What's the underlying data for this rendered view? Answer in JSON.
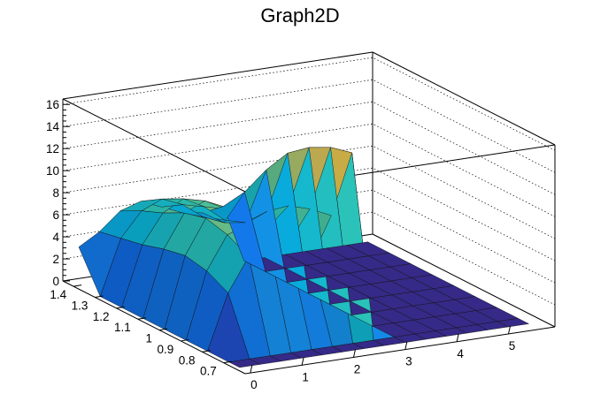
{
  "chart_data": {
    "type": "surface",
    "title": "Graph2D",
    "xlim": [
      -0.1,
      5.9
    ],
    "ylim": [
      0.6,
      1.45
    ],
    "zlim": [
      0,
      16.5
    ],
    "x_ticks": [
      "0",
      "1",
      "2",
      "3",
      "4",
      "5"
    ],
    "y_ticks": [
      "0.7",
      "0.8",
      "0.9",
      "1",
      "1.1",
      "1.2",
      "1.3",
      "1.4"
    ],
    "z_ticks": [
      "0",
      "2",
      "4",
      "6",
      "8",
      "10",
      "12",
      "14",
      "16"
    ],
    "grid": true,
    "palette": [
      "#352a87",
      "#0f5cdd",
      "#1481d6",
      "#06a4ca",
      "#2eb7a4",
      "#87bf77",
      "#d1bb59",
      "#fec832",
      "#f9fb0e"
    ],
    "z_grid_x": [
      0,
      0.4,
      0.8,
      1.2,
      1.6,
      2.0,
      2.4,
      2.8,
      3.2,
      3.6,
      4.0,
      4.4,
      4.8,
      5.2,
      5.6
    ],
    "z_grid_y": [
      1.4,
      1.3,
      1.2,
      1.1,
      1.0,
      0.9,
      0.8,
      0.7,
      0.65
    ],
    "z_values": [
      [
        3.5,
        4.6,
        6.2,
        6.8,
        6.0,
        5.2,
        4.9,
        5.2,
        0,
        0,
        0,
        0,
        0,
        0,
        0
      ],
      [
        0,
        5.0,
        7.2,
        8.0,
        7.2,
        5.8,
        5.0,
        7.5,
        0,
        0,
        0,
        0,
        0,
        0,
        0
      ],
      [
        0,
        5.4,
        8.0,
        9.0,
        8.0,
        6.5,
        6.0,
        10.5,
        0,
        0,
        0,
        0,
        0,
        0,
        0
      ],
      [
        0,
        6.0,
        9.0,
        9.8,
        8.8,
        7.2,
        8.0,
        13.0,
        0,
        0,
        0,
        0,
        0,
        0,
        0
      ],
      [
        0,
        6.4,
        9.5,
        10.2,
        9.4,
        7.8,
        9.5,
        14.5,
        0,
        0,
        0,
        0,
        0,
        0,
        0
      ],
      [
        0,
        6.0,
        9.0,
        9.6,
        9.0,
        7.5,
        10.2,
        15.5,
        0,
        0,
        0,
        0,
        0,
        0,
        0
      ],
      [
        0,
        5.0,
        8.0,
        8.6,
        8.0,
        6.8,
        10.6,
        16.0,
        0,
        0,
        0,
        0,
        0,
        0,
        0
      ],
      [
        0,
        0,
        0,
        0,
        0,
        0,
        0,
        0,
        0,
        0,
        0,
        0,
        0,
        0,
        0
      ],
      [
        0,
        0,
        0,
        0,
        0,
        0,
        0,
        0,
        0,
        0,
        0,
        0,
        0,
        0,
        0
      ]
    ]
  }
}
